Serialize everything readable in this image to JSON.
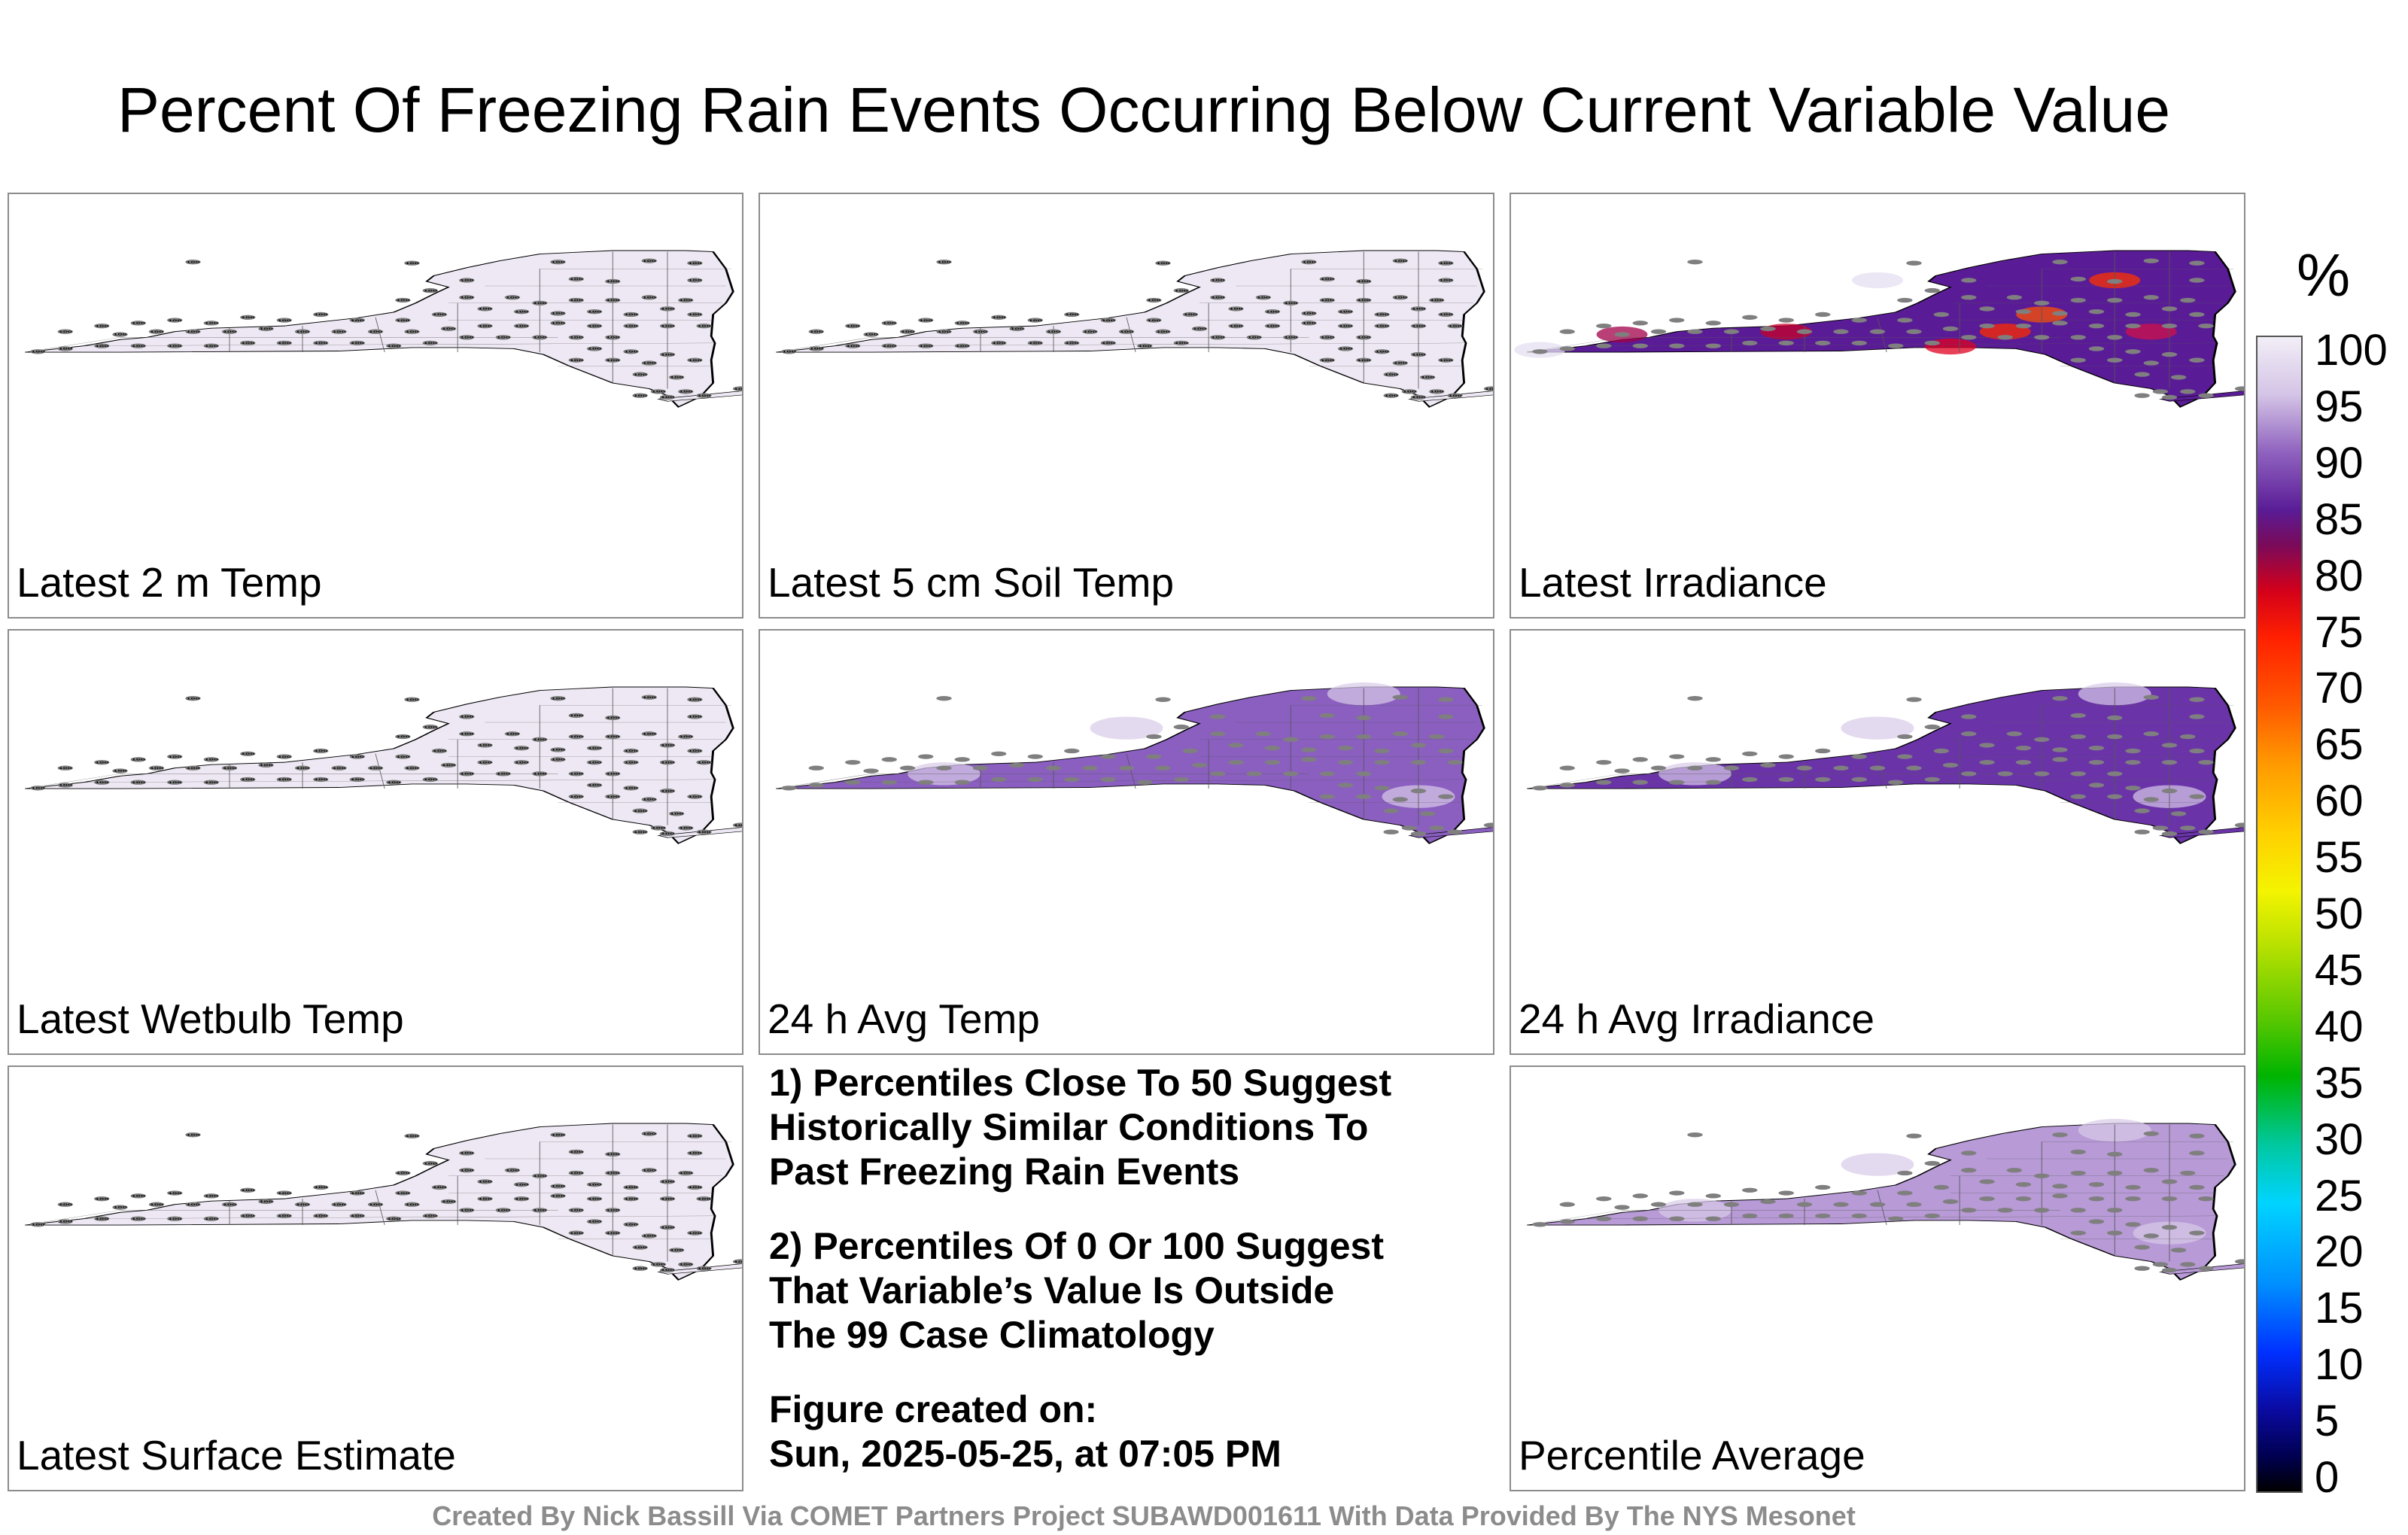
{
  "title": "Percent Of Freezing Rain Events Occurring Below Current Variable Value",
  "panels": [
    {
      "label": "Latest 2 m Temp",
      "mode": "uniform",
      "value": 100
    },
    {
      "label": "Latest 5 cm Soil Temp",
      "mode": "uniform",
      "value": 100
    },
    {
      "label": "Latest Irradiance",
      "mode": "irradiance"
    },
    {
      "label": "Latest Wetbulb Temp",
      "mode": "uniform",
      "value": 100
    },
    {
      "label": "24 h Avg Temp",
      "mode": "avgtemp"
    },
    {
      "label": "24 h Avg Irradiance",
      "mode": "avgirr"
    },
    {
      "label": "Latest Surface Estimate",
      "mode": "uniform",
      "value": 100
    },
    {
      "label": "Percentile Average",
      "mode": "average"
    }
  ],
  "notes": {
    "line1a": "1) Percentiles Close To 50 Suggest",
    "line1b": "Historically Similar Conditions To",
    "line1c": "Past Freezing Rain Events",
    "line2a": "2) Percentiles Of 0 Or 100 Suggest",
    "line2b": "That Variable’s Value Is Outside",
    "line2c": "The 99 Case Climatology",
    "line3a": "Figure created on:",
    "line3b": "Sun, 2025-05-25, at 07:05 PM"
  },
  "credit": "Created By Nick Bassill Via COMET Partners Project SUBAWD001611 With Data Provided By The NYS Mesonet",
  "colorbar": {
    "unit": "%",
    "ticks": [
      "100",
      "95",
      "90",
      "85",
      "80",
      "75",
      "70",
      "65",
      "60",
      "55",
      "50",
      "45",
      "40",
      "35",
      "30",
      "25",
      "20",
      "15",
      "10",
      "5",
      "0"
    ],
    "range": [
      0,
      100
    ]
  },
  "colors": {
    "uniform_fill": "#eee8f4",
    "marker": "#7f7f7f",
    "panel_border": "#8c8c8c",
    "credit_text": "#8c8c8c"
  }
}
